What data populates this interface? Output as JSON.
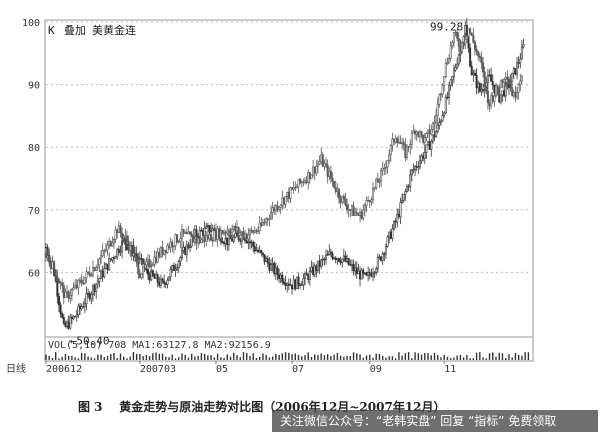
{
  "chart_data": {
    "type": "candlestick",
    "indicator_label": "K",
    "overlay_label": "叠加",
    "overlay_name": "美黄金连",
    "y_axis": {
      "min": 50,
      "max": 100,
      "ticks": [
        60,
        70,
        80,
        90,
        100
      ]
    },
    "x_axis": {
      "label": "日线",
      "ticks": [
        {
          "label": "200612",
          "index": 0
        },
        {
          "label": "200703",
          "index": 58
        },
        {
          "label": "05",
          "index": 105
        },
        {
          "label": "07",
          "index": 152
        },
        {
          "label": "09",
          "index": 200
        },
        {
          "label": "11",
          "index": 246
        }
      ],
      "count": 300
    },
    "annotations": {
      "high": {
        "label": "99.28",
        "value": 99.28,
        "index": 257
      },
      "low": {
        "label": "←50.40",
        "value": 50.4,
        "index": 11
      }
    },
    "series": [
      {
        "keypoints": [
          [
            0,
            64
          ],
          [
            5,
            60
          ],
          [
            11,
            51
          ],
          [
            18,
            53
          ],
          [
            28,
            57
          ],
          [
            40,
            62
          ],
          [
            48,
            65
          ],
          [
            55,
            63
          ],
          [
            62,
            60
          ],
          [
            72,
            58
          ],
          [
            82,
            62
          ],
          [
            92,
            66
          ],
          [
            102,
            67
          ],
          [
            112,
            65
          ],
          [
            122,
            66
          ],
          [
            132,
            63
          ],
          [
            142,
            60
          ],
          [
            152,
            58
          ],
          [
            160,
            59
          ],
          [
            168,
            61
          ],
          [
            176,
            63
          ],
          [
            184,
            62
          ],
          [
            192,
            60
          ],
          [
            198,
            59
          ],
          [
            206,
            62
          ],
          [
            216,
            68
          ],
          [
            226,
            76
          ],
          [
            236,
            80
          ],
          [
            242,
            83
          ],
          [
            248,
            88
          ],
          [
            255,
            95
          ],
          [
            259,
            99.2
          ],
          [
            263,
            92
          ],
          [
            268,
            89
          ],
          [
            274,
            91
          ],
          [
            280,
            88
          ],
          [
            286,
            90
          ],
          [
            291,
            93
          ],
          [
            295,
            96
          ]
        ],
        "color": "#333333"
      },
      {
        "keypoints": [
          [
            0,
            63
          ],
          [
            6,
            60
          ],
          [
            12,
            56
          ],
          [
            20,
            58
          ],
          [
            30,
            61
          ],
          [
            38,
            64
          ],
          [
            44,
            67
          ],
          [
            50,
            65
          ],
          [
            58,
            60
          ],
          [
            66,
            62
          ],
          [
            74,
            64
          ],
          [
            84,
            66
          ],
          [
            94,
            65
          ],
          [
            104,
            66
          ],
          [
            114,
            67
          ],
          [
            124,
            66
          ],
          [
            132,
            67
          ],
          [
            140,
            70
          ],
          [
            148,
            72
          ],
          [
            156,
            74
          ],
          [
            164,
            76
          ],
          [
            170,
            78
          ],
          [
            176,
            75
          ],
          [
            182,
            72
          ],
          [
            188,
            70
          ],
          [
            194,
            69
          ],
          [
            200,
            72
          ],
          [
            208,
            76
          ],
          [
            216,
            82
          ],
          [
            222,
            79
          ],
          [
            228,
            83
          ],
          [
            234,
            81
          ],
          [
            240,
            84
          ],
          [
            246,
            92
          ],
          [
            252,
            98
          ],
          [
            256,
            96
          ],
          [
            261,
            99
          ],
          [
            265,
            96
          ],
          [
            269,
            93
          ],
          [
            273,
            87
          ],
          [
            278,
            89
          ],
          [
            284,
            92
          ],
          [
            289,
            88
          ],
          [
            294,
            92
          ]
        ],
        "color": "#5a5a5a"
      }
    ],
    "volume": {
      "label": "VOL(5,10) 708 MA1:63127.8 MA2:92156.9",
      "max": 100
    },
    "grid": "dashed-horizontal"
  },
  "caption": {
    "figure_no": "图 3",
    "title": "黄金走势与原油走势对比图（2006年12月~2007年12月）"
  },
  "watermark": "关注微信公众号：“老韩实盘” 回复 “指标” 免费领取"
}
